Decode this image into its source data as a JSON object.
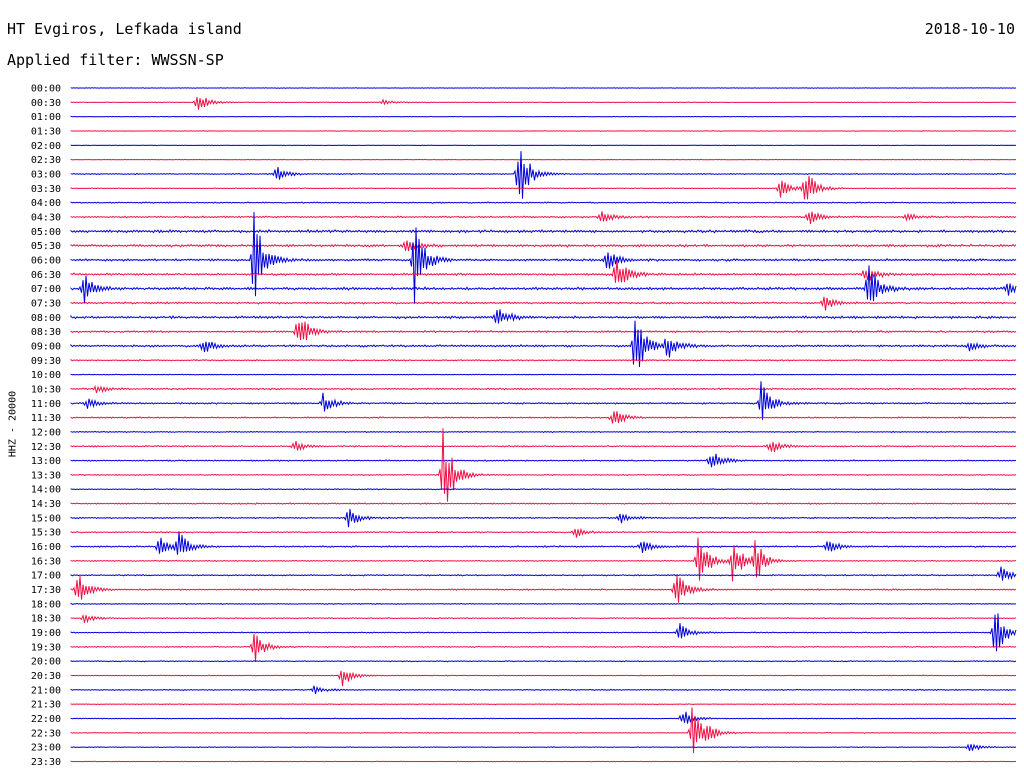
{
  "header": {
    "station": "HT Evgiros, Lefkada island",
    "date": "2018-10-10",
    "filter_label": "Applied filter:",
    "filter_value": "WWSSN-SP"
  },
  "chart_data": {
    "type": "line",
    "title": "HT Evgiros, Lefkada island",
    "channel": "HHZ - 20000",
    "time_labels": [
      "00:00",
      "00:30",
      "01:00",
      "01:30",
      "02:00",
      "02:30",
      "03:00",
      "03:30",
      "04:00",
      "04:30",
      "05:00",
      "05:30",
      "06:00",
      "06:30",
      "07:00",
      "07:30",
      "08:00",
      "08:30",
      "09:00",
      "09:30",
      "10:00",
      "10:30",
      "11:00",
      "11:30",
      "12:00",
      "12:30",
      "13:00",
      "13:30",
      "14:00",
      "14:30",
      "15:00",
      "15:30",
      "16:00",
      "16:30",
      "17:00",
      "17:30",
      "18:00",
      "18:30",
      "19:00",
      "19:30",
      "20:00",
      "20:30",
      "21:00",
      "21:30",
      "22:00",
      "22:30",
      "23:00",
      "23:30"
    ],
    "trace_duration_minutes": 30,
    "colors": [
      "#0000dd",
      "#ee1144"
    ],
    "noise_level": [
      0.2,
      0.25,
      0.2,
      0.2,
      0.2,
      0.2,
      0.4,
      0.3,
      0.5,
      0.6,
      1,
      0.9,
      0.8,
      0.8,
      1,
      0.7,
      0.9,
      0.7,
      0.8,
      0.5,
      0.3,
      0.6,
      0.6,
      0.5,
      0.4,
      0.5,
      0.5,
      0.4,
      0.4,
      0.5,
      0.5,
      0.5,
      0.6,
      0.4,
      0.5,
      0.5,
      0.4,
      0.4,
      0.4,
      0.4,
      0.4,
      0.3,
      0.4,
      0.3,
      0.3,
      0.3,
      0.3,
      0.2
    ],
    "events": [
      {
        "line": "00:30",
        "minute": 4.0,
        "amplitude": 12
      },
      {
        "line": "00:30",
        "minute": 9.9,
        "amplitude": 3
      },
      {
        "line": "03:00",
        "minute": 6.5,
        "amplitude": 9
      },
      {
        "line": "03:00",
        "minute": 14.2,
        "amplitude": 40
      },
      {
        "line": "03:30",
        "minute": 22.5,
        "amplitude": 10
      },
      {
        "line": "03:30",
        "minute": 23.3,
        "amplitude": 22
      },
      {
        "line": "04:30",
        "minute": 16.8,
        "amplitude": 8
      },
      {
        "line": "04:30",
        "minute": 23.4,
        "amplitude": 9
      },
      {
        "line": "04:30",
        "minute": 26.5,
        "amplitude": 6
      },
      {
        "line": "05:30",
        "minute": 10.6,
        "amplitude": 8
      },
      {
        "line": "06:00",
        "minute": 5.8,
        "amplitude": 55
      },
      {
        "line": "06:00",
        "minute": 10.9,
        "amplitude": 45
      },
      {
        "line": "06:00",
        "minute": 17.0,
        "amplitude": 12
      },
      {
        "line": "06:30",
        "minute": 17.3,
        "amplitude": 22
      },
      {
        "line": "06:30",
        "minute": 25.2,
        "amplitude": 10
      },
      {
        "line": "07:00",
        "minute": 0.4,
        "amplitude": 16
      },
      {
        "line": "07:00",
        "minute": 25.3,
        "amplitude": 28
      },
      {
        "line": "07:00",
        "minute": 29.7,
        "amplitude": 8
      },
      {
        "line": "07:30",
        "minute": 23.9,
        "amplitude": 9
      },
      {
        "line": "08:00",
        "minute": 13.5,
        "amplitude": 13
      },
      {
        "line": "08:30",
        "minute": 7.2,
        "amplitude": 24
      },
      {
        "line": "09:00",
        "minute": 4.2,
        "amplitude": 8
      },
      {
        "line": "09:00",
        "minute": 17.9,
        "amplitude": 45
      },
      {
        "line": "09:00",
        "minute": 18.9,
        "amplitude": 14
      },
      {
        "line": "09:00",
        "minute": 28.5,
        "amplitude": 6
      },
      {
        "line": "10:30",
        "minute": 0.8,
        "amplitude": 5
      },
      {
        "line": "11:00",
        "minute": 0.5,
        "amplitude": 6
      },
      {
        "line": "11:00",
        "minute": 8.0,
        "amplitude": 10
      },
      {
        "line": "11:00",
        "minute": 21.9,
        "amplitude": 22
      },
      {
        "line": "11:30",
        "minute": 17.2,
        "amplitude": 10
      },
      {
        "line": "12:30",
        "minute": 7.1,
        "amplitude": 6
      },
      {
        "line": "12:30",
        "minute": 22.2,
        "amplitude": 8
      },
      {
        "line": "13:30",
        "minute": 11.8,
        "amplitude": 52
      },
      {
        "line": "13:00",
        "minute": 20.3,
        "amplitude": 12
      },
      {
        "line": "15:00",
        "minute": 8.8,
        "amplitude": 12
      },
      {
        "line": "15:00",
        "minute": 17.4,
        "amplitude": 8
      },
      {
        "line": "15:30",
        "minute": 16.0,
        "amplitude": 6
      },
      {
        "line": "16:00",
        "minute": 2.8,
        "amplitude": 14
      },
      {
        "line": "16:00",
        "minute": 3.4,
        "amplitude": 16
      },
      {
        "line": "16:00",
        "minute": 18.1,
        "amplitude": 8
      },
      {
        "line": "16:00",
        "minute": 24.0,
        "amplitude": 8
      },
      {
        "line": "16:30",
        "minute": 19.9,
        "amplitude": 30
      },
      {
        "line": "16:30",
        "minute": 21.0,
        "amplitude": 22
      },
      {
        "line": "16:30",
        "minute": 21.7,
        "amplitude": 22
      },
      {
        "line": "17:00",
        "minute": 29.5,
        "amplitude": 11
      },
      {
        "line": "17:30",
        "minute": 0.2,
        "amplitude": 20
      },
      {
        "line": "17:30",
        "minute": 19.2,
        "amplitude": 20
      },
      {
        "line": "18:30",
        "minute": 0.4,
        "amplitude": 5
      },
      {
        "line": "19:00",
        "minute": 19.3,
        "amplitude": 10
      },
      {
        "line": "19:00",
        "minute": 29.3,
        "amplitude": 30
      },
      {
        "line": "19:30",
        "minute": 5.8,
        "amplitude": 20
      },
      {
        "line": "20:30",
        "minute": 8.6,
        "amplitude": 12
      },
      {
        "line": "21:00",
        "minute": 7.7,
        "amplitude": 5
      },
      {
        "line": "22:00",
        "minute": 19.4,
        "amplitude": 10
      },
      {
        "line": "22:30",
        "minute": 19.7,
        "amplitude": 30
      },
      {
        "line": "22:30",
        "minute": 20.2,
        "amplitude": 6
      },
      {
        "line": "23:00",
        "minute": 28.5,
        "amplitude": 5
      }
    ]
  }
}
